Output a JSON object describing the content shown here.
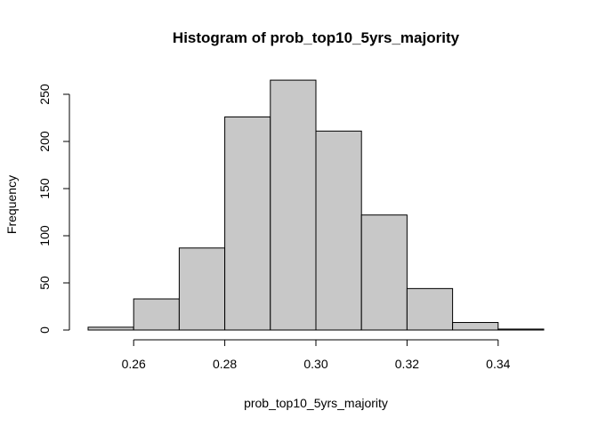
{
  "chart_data": {
    "type": "bar",
    "title": "Histogram of prob_top10_5yrs_majority",
    "xlabel": "prob_top10_5yrs_majority",
    "ylabel": "Frequency",
    "bins": [
      {
        "x0": 0.25,
        "x1": 0.26,
        "count": 3
      },
      {
        "x0": 0.26,
        "x1": 0.27,
        "count": 33
      },
      {
        "x0": 0.27,
        "x1": 0.28,
        "count": 87
      },
      {
        "x0": 0.28,
        "x1": 0.29,
        "count": 226
      },
      {
        "x0": 0.29,
        "x1": 0.3,
        "count": 265
      },
      {
        "x0": 0.3,
        "x1": 0.31,
        "count": 211
      },
      {
        "x0": 0.31,
        "x1": 0.32,
        "count": 122
      },
      {
        "x0": 0.32,
        "x1": 0.33,
        "count": 44
      },
      {
        "x0": 0.33,
        "x1": 0.34,
        "count": 8
      },
      {
        "x0": 0.34,
        "x1": 0.35,
        "count": 1
      }
    ],
    "xlim": [
      0.25,
      0.35
    ],
    "ylim": [
      0,
      265
    ],
    "x_ticks": [
      0.26,
      0.28,
      0.3,
      0.32,
      0.34
    ],
    "x_tick_labels": [
      "0.26",
      "0.28",
      "0.30",
      "0.32",
      "0.34"
    ],
    "y_ticks": [
      0,
      50,
      100,
      150,
      200,
      250
    ],
    "y_tick_labels": [
      "0",
      "50",
      "100",
      "150",
      "200",
      "250"
    ],
    "grid": false,
    "legend": "none",
    "bar_color": "#c8c8c8",
    "edge_color": "#000000"
  }
}
